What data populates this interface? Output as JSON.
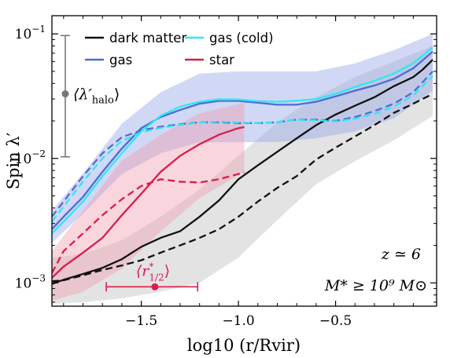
{
  "chart_data": {
    "type": "line",
    "xlabel": "log10 (r/Rvir)",
    "ylabel": "Spin λ′",
    "xlim": [
      -1.96,
      0.02
    ],
    "ylim": [
      0.00065,
      0.14
    ],
    "yscale": "log",
    "x_ticks": [
      {
        "value": -1.5,
        "label": "−1.5"
      },
      {
        "value": -1.0,
        "label": "−1.0"
      },
      {
        "value": -0.5,
        "label": "−0.5"
      }
    ],
    "y_ticks": [
      {
        "value": 0.001,
        "base": "10",
        "exp": "−3"
      },
      {
        "value": 0.01,
        "base": "10",
        "exp": "−2"
      },
      {
        "value": 0.1,
        "base": "10",
        "exp": "−1"
      }
    ],
    "series": [
      {
        "name": "dark matter",
        "color": "#111111",
        "band_color": "#bdbdbd",
        "solid": {
          "x": [
            -1.96,
            -1.9,
            -1.8,
            -1.7,
            -1.6,
            -1.5,
            -1.4,
            -1.3,
            -1.2,
            -1.1,
            -1.0,
            -0.9,
            -0.8,
            -0.7,
            -0.6,
            -0.5,
            -0.4,
            -0.3,
            -0.2,
            -0.1,
            -0.05,
            0.0
          ],
          "y": [
            0.00098,
            0.00106,
            0.00118,
            0.00132,
            0.00155,
            0.00195,
            0.0023,
            0.0026,
            0.0034,
            0.0046,
            0.0068,
            0.0088,
            0.0113,
            0.0145,
            0.0185,
            0.0225,
            0.0265,
            0.031,
            0.038,
            0.045,
            0.052,
            0.062
          ]
        },
        "dashed": {
          "x": [
            -1.96,
            -1.9,
            -1.8,
            -1.7,
            -1.6,
            -1.5,
            -1.4,
            -1.3,
            -1.2,
            -1.1,
            -1.0,
            -0.9,
            -0.8,
            -0.7,
            -0.6,
            -0.5,
            -0.4,
            -0.3,
            -0.2,
            -0.1,
            0.0
          ],
          "y": [
            0.00103,
            0.00105,
            0.00115,
            0.00127,
            0.00138,
            0.00152,
            0.00175,
            0.002,
            0.0023,
            0.0027,
            0.0034,
            0.0045,
            0.0058,
            0.0072,
            0.0098,
            0.0122,
            0.015,
            0.0185,
            0.0232,
            0.0275,
            0.033
          ]
        },
        "band": {
          "x": [
            -1.96,
            -1.8,
            -1.6,
            -1.4,
            -1.2,
            -1.0,
            -0.8,
            -0.6,
            -0.4,
            -0.2,
            0.0
          ],
          "lo": [
            0.00068,
            0.0007,
            0.00075,
            0.00085,
            0.001,
            0.0016,
            0.0032,
            0.0062,
            0.0095,
            0.014,
            0.022
          ],
          "hi": [
            0.0016,
            0.0017,
            0.0022,
            0.0034,
            0.0056,
            0.0105,
            0.0195,
            0.031,
            0.045,
            0.06,
            0.08
          ]
        }
      },
      {
        "name": "gas",
        "color": "#4e6bd6",
        "band_color": "#8fa2e8",
        "solid": {
          "x": [
            -1.96,
            -1.9,
            -1.8,
            -1.7,
            -1.6,
            -1.5,
            -1.4,
            -1.3,
            -1.2,
            -1.1,
            -1.0,
            -0.9,
            -0.8,
            -0.7,
            -0.6,
            -0.5,
            -0.4,
            -0.3,
            -0.2,
            -0.1,
            0.0
          ],
          "y": [
            0.0027,
            0.0034,
            0.0049,
            0.0078,
            0.012,
            0.0175,
            0.0215,
            0.0245,
            0.0275,
            0.029,
            0.029,
            0.028,
            0.027,
            0.027,
            0.0285,
            0.0315,
            0.035,
            0.0385,
            0.0435,
            0.053,
            0.072
          ]
        },
        "dashed": {
          "x": [
            -1.96,
            -1.9,
            -1.8,
            -1.7,
            -1.6,
            -1.5,
            -1.4,
            -1.3,
            -1.2,
            -1.1,
            -1.0,
            -0.9,
            -0.8,
            -0.7,
            -0.6,
            -0.5,
            -0.4,
            -0.3,
            -0.2,
            -0.1,
            0.0
          ],
          "y": [
            0.0034,
            0.0045,
            0.0072,
            0.011,
            0.0148,
            0.0168,
            0.018,
            0.0188,
            0.0195,
            0.0195,
            0.0192,
            0.0192,
            0.0195,
            0.0205,
            0.0205,
            0.02,
            0.0215,
            0.024,
            0.0275,
            0.034,
            0.05
          ]
        },
        "band": {
          "x": [
            -1.96,
            -1.8,
            -1.6,
            -1.4,
            -1.2,
            -1.0,
            -0.8,
            -0.6,
            -0.4,
            -0.2,
            0.0
          ],
          "lo": [
            0.0021,
            0.0036,
            0.0075,
            0.011,
            0.0135,
            0.0135,
            0.0135,
            0.0145,
            0.0165,
            0.021,
            0.035
          ],
          "hi": [
            0.0038,
            0.0076,
            0.019,
            0.034,
            0.048,
            0.05,
            0.05,
            0.05,
            0.058,
            0.074,
            0.1
          ]
        }
      },
      {
        "name": "gas (cold)",
        "color": "#2ee8f0",
        "solid": {
          "x": [
            -1.96,
            -1.9,
            -1.8,
            -1.7,
            -1.6,
            -1.5,
            -1.4,
            -1.3,
            -1.2,
            -1.1,
            -1.0,
            -0.9,
            -0.8,
            -0.7,
            -0.6,
            -0.5,
            -0.4,
            -0.3,
            -0.2,
            -0.1,
            0.0
          ],
          "y": [
            0.0025,
            0.0031,
            0.0045,
            0.0072,
            0.011,
            0.0165,
            0.022,
            0.026,
            0.0285,
            0.0298,
            0.0297,
            0.0288,
            0.0285,
            0.029,
            0.03,
            0.033,
            0.0375,
            0.042,
            0.048,
            0.058,
            0.078
          ]
        },
        "dashed": {
          "x": [
            -1.96,
            -1.9,
            -1.8,
            -1.7,
            -1.6,
            -1.5,
            -1.4,
            -1.3,
            -1.2,
            -1.1,
            -1.0,
            -0.9,
            -0.8,
            -0.7,
            -0.6,
            -0.5,
            -0.4,
            -0.3,
            -0.2,
            -0.1,
            0.0
          ],
          "y": [
            0.0031,
            0.0041,
            0.0065,
            0.01,
            0.0138,
            0.0162,
            0.0176,
            0.0186,
            0.0194,
            0.0198,
            0.0194,
            0.0192,
            0.0196,
            0.0204,
            0.0203,
            0.0198,
            0.0208,
            0.0228,
            0.026,
            0.032,
            0.046
          ]
        }
      },
      {
        "name": "star",
        "color": "#d81e4a",
        "band_color": "#f09aae",
        "solid": {
          "x": [
            -1.96,
            -1.9,
            -1.8,
            -1.7,
            -1.6,
            -1.5,
            -1.4,
            -1.3,
            -1.2,
            -1.1,
            -1.0,
            -0.97
          ],
          "y": [
            0.0011,
            0.00135,
            0.00175,
            0.0023,
            0.0035,
            0.0052,
            0.0078,
            0.0105,
            0.013,
            0.0155,
            0.0175,
            0.0178
          ]
        },
        "dashed": {
          "x": [
            -1.96,
            -1.9,
            -1.8,
            -1.7,
            -1.6,
            -1.5,
            -1.4,
            -1.3,
            -1.2,
            -1.1,
            -1.0,
            -0.97
          ],
          "y": [
            0.0012,
            0.0018,
            0.0025,
            0.0035,
            0.0047,
            0.006,
            0.0068,
            0.0065,
            0.0064,
            0.0068,
            0.0075,
            0.0077
          ]
        },
        "band": {
          "x": [
            -1.96,
            -1.8,
            -1.6,
            -1.4,
            -1.2,
            -0.97
          ],
          "lo": [
            0.00072,
            0.00085,
            0.0013,
            0.0026,
            0.0048,
            0.0078
          ],
          "hi": [
            0.0018,
            0.0038,
            0.0096,
            0.0155,
            0.023,
            0.028
          ]
        }
      }
    ],
    "halo_marker": {
      "label_main": "⟨λ′",
      "label_sub": "halo",
      "label_close": "⟩",
      "value": 0.033,
      "err_lo": 0.0103,
      "err_hi": 0.097,
      "color": "#777777"
    },
    "r_half_marker": {
      "label_main": "⟨r",
      "label_sup": "*",
      "label_sub": "1/2",
      "label_close": "⟩",
      "x": -1.43,
      "x_lo": -1.68,
      "x_hi": -1.21,
      "y": 0.00093,
      "color": "#d81e4a"
    },
    "annotations": [
      {
        "text": "z ≃ 6"
      },
      {
        "text": "M* ≥ 10⁹ M⊙"
      }
    ],
    "legend": {
      "placement": "top-left",
      "columns": 2
    }
  }
}
